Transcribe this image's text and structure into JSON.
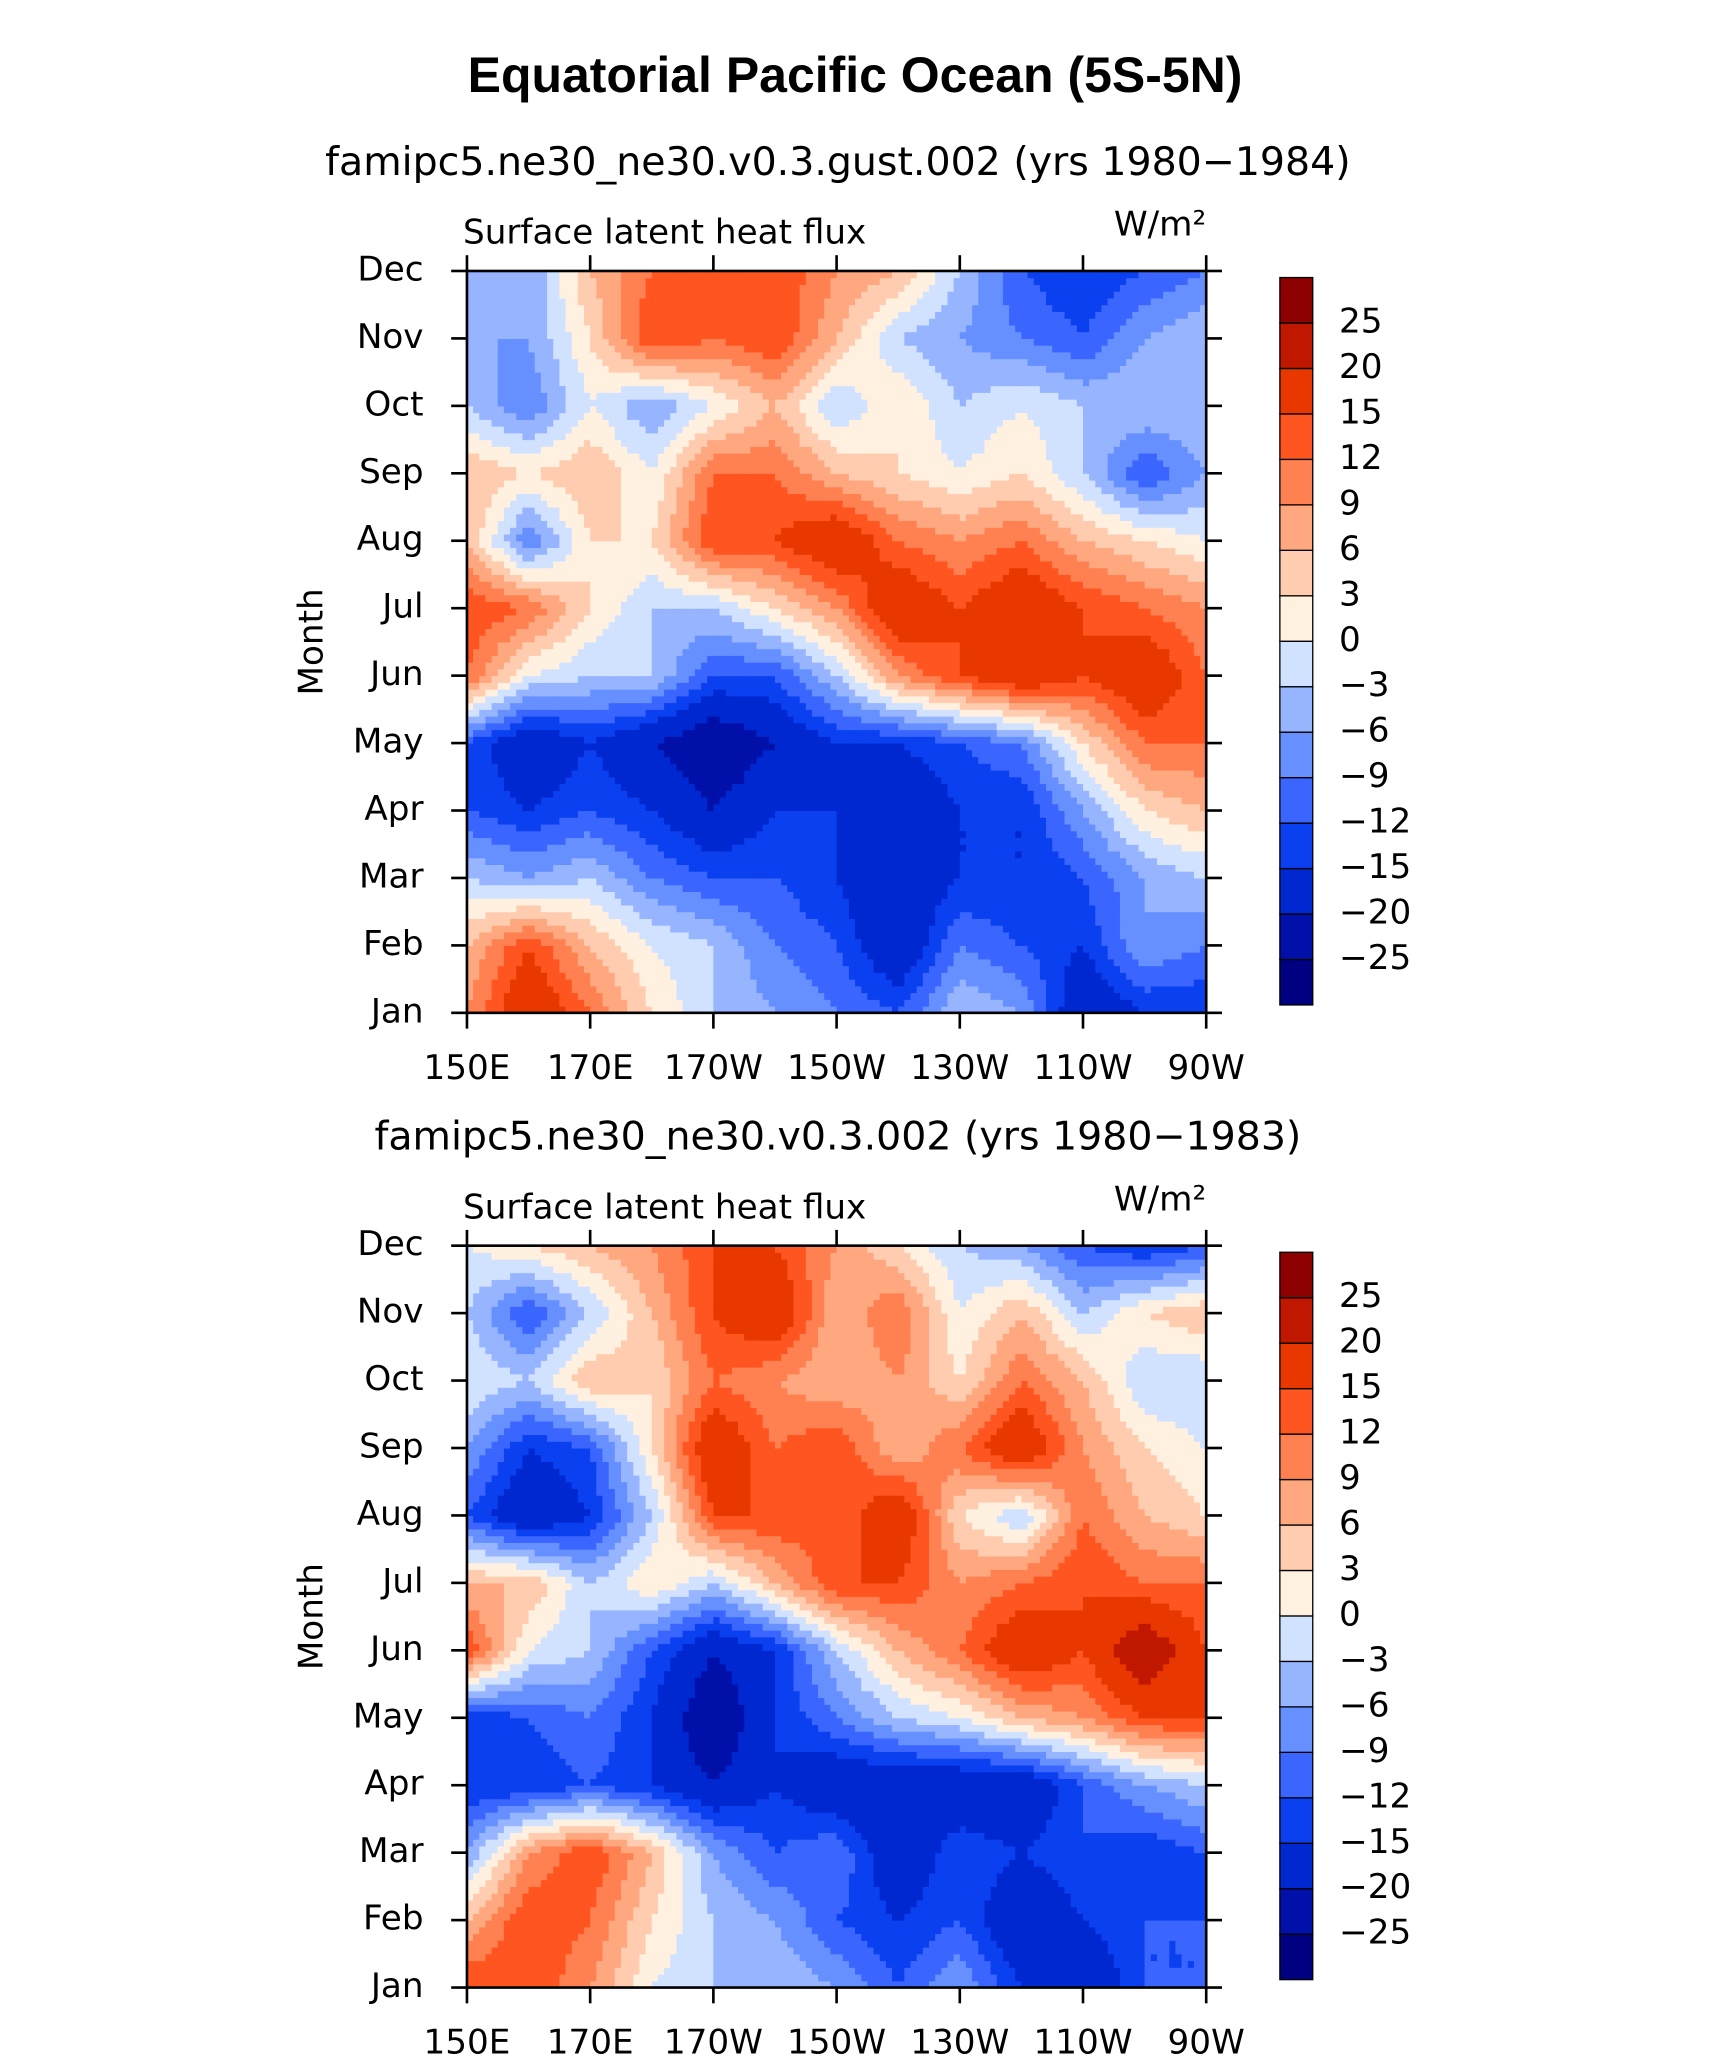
{
  "title": "Equatorial Pacific Ocean (5S-5N)",
  "chart_data": [
    {
      "type": "contour",
      "subtitle": "famipc5.ne30_ne30.v0.3.gust.002 (yrs 1980−1984)",
      "left_label": "Surface latent heat flux",
      "units": "W/m²",
      "ylabel": "Month",
      "x": [
        150,
        160,
        170,
        180,
        190,
        200,
        210,
        220,
        230,
        240,
        250,
        260,
        270
      ],
      "y": [
        "Jan",
        "Feb",
        "Mar",
        "Apr",
        "May",
        "Jun",
        "Jul",
        "Aug",
        "Sep",
        "Oct",
        "Nov",
        "Dec"
      ],
      "values": [
        [
          9,
          20,
          12,
          3,
          -3,
          -6,
          -9,
          -12,
          -3,
          -6,
          -20,
          -15,
          -15
        ],
        [
          6,
          15,
          6,
          0,
          -3,
          -9,
          -12,
          -20,
          -9,
          -12,
          -15,
          -6,
          -9
        ],
        [
          -3,
          -6,
          -3,
          -9,
          -12,
          -12,
          -15,
          -20,
          -15,
          -15,
          -12,
          -6,
          -3
        ],
        [
          -12,
          -15,
          -12,
          -15,
          -20,
          -15,
          -15,
          -20,
          -15,
          -15,
          -6,
          3,
          6
        ],
        [
          -12,
          -20,
          -15,
          -20,
          -25,
          -20,
          -15,
          -15,
          -12,
          -9,
          3,
          12,
          12
        ],
        [
          12,
          0,
          -3,
          -3,
          -12,
          -12,
          -3,
          9,
          15,
          20,
          15,
          20,
          12
        ],
        [
          15,
          12,
          3,
          -3,
          -3,
          3,
          9,
          20,
          15,
          20,
          15,
          12,
          9
        ],
        [
          6,
          -9,
          3,
          3,
          15,
          15,
          20,
          12,
          9,
          12,
          6,
          3,
          0
        ],
        [
          6,
          3,
          6,
          0,
          12,
          12,
          6,
          3,
          0,
          3,
          -3,
          -12,
          -6
        ],
        [
          -3,
          -9,
          0,
          -6,
          0,
          6,
          -3,
          3,
          -3,
          0,
          -3,
          -3,
          -3
        ],
        [
          -6,
          -6,
          3,
          15,
          12,
          15,
          6,
          -3,
          -6,
          -9,
          -12,
          -6,
          -3
        ],
        [
          -3,
          -6,
          6,
          12,
          15,
          15,
          9,
          6,
          -3,
          -12,
          -15,
          -12,
          -9
        ]
      ],
      "xlim": [
        150,
        270
      ],
      "xticks": [
        {
          "value": 150,
          "label": "150E"
        },
        {
          "value": 170,
          "label": "170E"
        },
        {
          "value": 190,
          "label": "170W"
        },
        {
          "value": 210,
          "label": "150W"
        },
        {
          "value": 230,
          "label": "130W"
        },
        {
          "value": 250,
          "label": "110W"
        },
        {
          "value": 270,
          "label": "90W"
        }
      ],
      "levels": [
        {
          "value": -25,
          "label": "−25"
        },
        {
          "value": -20,
          "label": "−20"
        },
        {
          "value": -15,
          "label": "−15"
        },
        {
          "value": -12,
          "label": "−12"
        },
        {
          "value": -9,
          "label": "−9"
        },
        {
          "value": -6,
          "label": "−6"
        },
        {
          "value": -3,
          "label": "−3"
        },
        0,
        3,
        6,
        9,
        12,
        15,
        20,
        25
      ],
      "colors": [
        "#000080",
        "#0010a8",
        "#0028d0",
        "#0a40f0",
        "#3a66ff",
        "#6690ff",
        "#96b4ff",
        "#d0e2ff",
        "#fff0e0",
        "#ffccb0",
        "#ffa880",
        "#ff8050",
        "#ff5520",
        "#e83800",
        "#c01800",
        "#8c0000"
      ]
    },
    {
      "type": "contour",
      "subtitle": "famipc5.ne30_ne30.v0.3.002 (yrs 1980−1983)",
      "left_label": "Surface latent heat flux",
      "units": "W/m²",
      "ylabel": "Month",
      "x": [
        150,
        160,
        170,
        180,
        190,
        200,
        210,
        220,
        230,
        240,
        250,
        260,
        270
      ],
      "y": [
        "Jan",
        "Feb",
        "Mar",
        "Apr",
        "May",
        "Jun",
        "Jul",
        "Aug",
        "Sep",
        "Oct",
        "Nov",
        "Dec"
      ],
      "values": [
        [
          15,
          15,
          9,
          0,
          -3,
          -3,
          -6,
          -12,
          -6,
          -15,
          -20,
          -12,
          -12
        ],
        [
          6,
          15,
          12,
          3,
          -3,
          -6,
          -12,
          -15,
          -12,
          -20,
          -15,
          -12,
          -12
        ],
        [
          -6,
          9,
          15,
          6,
          -6,
          -12,
          -9,
          -20,
          -12,
          -15,
          -12,
          -15,
          -12
        ],
        [
          -15,
          -15,
          -12,
          -15,
          -20,
          -15,
          -20,
          -20,
          -20,
          -20,
          -12,
          -6,
          -3
        ],
        [
          -15,
          -12,
          -9,
          -15,
          -25,
          -15,
          -9,
          -3,
          0,
          6,
          9,
          15,
          15
        ],
        [
          15,
          0,
          -3,
          -12,
          -20,
          -15,
          -3,
          6,
          12,
          20,
          15,
          25,
          15
        ],
        [
          6,
          6,
          -3,
          3,
          -3,
          6,
          15,
          15,
          9,
          12,
          15,
          12,
          12
        ],
        [
          -12,
          -20,
          -15,
          -3,
          15,
          15,
          12,
          20,
          3,
          -3,
          12,
          6,
          3
        ],
        [
          -6,
          -15,
          -12,
          3,
          20,
          12,
          15,
          6,
          12,
          20,
          9,
          3,
          0
        ],
        [
          0,
          -3,
          6,
          3,
          12,
          9,
          6,
          9,
          3,
          12,
          6,
          -3,
          -3
        ],
        [
          -3,
          -12,
          -3,
          6,
          15,
          20,
          6,
          12,
          0,
          6,
          -3,
          3,
          6
        ],
        [
          0,
          3,
          6,
          9,
          15,
          15,
          9,
          3,
          -3,
          -6,
          -12,
          -15,
          -12
        ]
      ],
      "xlim": [
        150,
        270
      ],
      "xticks": [
        {
          "value": 150,
          "label": "150E"
        },
        {
          "value": 170,
          "label": "170E"
        },
        {
          "value": 190,
          "label": "170W"
        },
        {
          "value": 210,
          "label": "150W"
        },
        {
          "value": 230,
          "label": "130W"
        },
        {
          "value": 250,
          "label": "110W"
        },
        {
          "value": 270,
          "label": "90W"
        }
      ],
      "levels": [
        {
          "value": -25,
          "label": "−25"
        },
        {
          "value": -20,
          "label": "−20"
        },
        {
          "value": -15,
          "label": "−15"
        },
        {
          "value": -12,
          "label": "−12"
        },
        {
          "value": -9,
          "label": "−9"
        },
        {
          "value": -6,
          "label": "−6"
        },
        {
          "value": -3,
          "label": "−3"
        },
        0,
        3,
        6,
        9,
        12,
        15,
        20,
        25
      ],
      "colors": [
        "#000080",
        "#0010a8",
        "#0028d0",
        "#0a40f0",
        "#3a66ff",
        "#6690ff",
        "#96b4ff",
        "#d0e2ff",
        "#fff0e0",
        "#ffccb0",
        "#ffa880",
        "#ff8050",
        "#ff5520",
        "#e83800",
        "#c01800",
        "#8c0000"
      ]
    }
  ]
}
